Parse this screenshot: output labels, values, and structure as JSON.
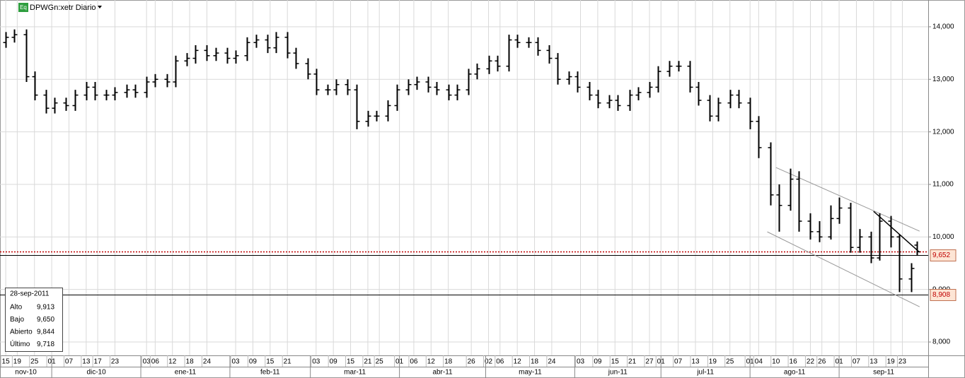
{
  "chart_data": {
    "type": "ohlc",
    "title": "DPWGn:xetr Diario",
    "badge": "Eq",
    "x": [
      "2010-11-15",
      "2010-11-18",
      "2010-11-22",
      "2010-11-25",
      "2010-11-29",
      "2010-12-02",
      "2010-12-06",
      "2010-12-09",
      "2010-12-13",
      "2010-12-16",
      "2010-12-20",
      "2010-12-23",
      "2010-12-27",
      "2010-12-30",
      "2011-01-03",
      "2011-01-06",
      "2011-01-10",
      "2011-01-13",
      "2011-01-17",
      "2011-01-20",
      "2011-01-24",
      "2011-01-27",
      "2011-01-31",
      "2011-02-03",
      "2011-02-07",
      "2011-02-10",
      "2011-02-14",
      "2011-02-17",
      "2011-02-21",
      "2011-02-24",
      "2011-02-28",
      "2011-03-03",
      "2011-03-07",
      "2011-03-10",
      "2011-03-14",
      "2011-03-17",
      "2011-03-21",
      "2011-03-24",
      "2011-03-28",
      "2011-03-31",
      "2011-04-04",
      "2011-04-07",
      "2011-04-11",
      "2011-04-14",
      "2011-04-18",
      "2011-04-21",
      "2011-04-25",
      "2011-04-28",
      "2011-05-02",
      "2011-05-05",
      "2011-05-09",
      "2011-05-12",
      "2011-05-16",
      "2011-05-19",
      "2011-05-23",
      "2011-05-26",
      "2011-05-30",
      "2011-06-02",
      "2011-06-06",
      "2011-06-09",
      "2011-06-13",
      "2011-06-16",
      "2011-06-20",
      "2011-06-23",
      "2011-06-27",
      "2011-06-30",
      "2011-07-04",
      "2011-07-07",
      "2011-07-11",
      "2011-07-14",
      "2011-07-18",
      "2011-07-21",
      "2011-07-25",
      "2011-07-28",
      "2011-08-01",
      "2011-08-04",
      "2011-08-08",
      "2011-08-11",
      "2011-08-15",
      "2011-08-18",
      "2011-08-22",
      "2011-08-25",
      "2011-08-29",
      "2011-09-01",
      "2011-09-05",
      "2011-09-08",
      "2011-09-12",
      "2011-09-15",
      "2011-09-19",
      "2011-09-22",
      "2011-09-26",
      "2011-09-28"
    ],
    "open": [
      13700,
      13800,
      13850,
      13050,
      12700,
      12450,
      12550,
      12500,
      12700,
      12850,
      12700,
      12700,
      12750,
      12800,
      12750,
      12950,
      13000,
      12950,
      13350,
      13400,
      13550,
      13450,
      13500,
      13400,
      13450,
      13700,
      13750,
      13600,
      13800,
      13500,
      13300,
      13100,
      12800,
      12800,
      12900,
      12800,
      12200,
      12300,
      12300,
      12500,
      12800,
      12900,
      12950,
      12850,
      12800,
      12700,
      12800,
      13100,
      13200,
      13350,
      13250,
      13750,
      13700,
      13700,
      13550,
      13400,
      13000,
      13050,
      12850,
      12700,
      12550,
      12600,
      12500,
      12700,
      12750,
      12850,
      13150,
      13250,
      13250,
      12850,
      12600,
      12300,
      12550,
      12700,
      12550,
      12200,
      11700,
      10800,
      10600,
      11100,
      10300,
      10100,
      10000,
      10350,
      10550,
      9800,
      10000,
      9600,
      10300,
      10000,
      9200,
      9844
    ],
    "high": [
      13900,
      13950,
      13950,
      13150,
      12800,
      12650,
      12650,
      12800,
      12950,
      12950,
      12800,
      12850,
      12900,
      12900,
      13050,
      13100,
      13100,
      13450,
      13500,
      13650,
      13650,
      13600,
      13600,
      13550,
      13800,
      13850,
      13850,
      13900,
      13900,
      13600,
      13400,
      13200,
      12900,
      13000,
      13000,
      12900,
      12400,
      12400,
      12600,
      12900,
      13000,
      13050,
      13050,
      12950,
      12900,
      12900,
      13200,
      13300,
      13450,
      13450,
      13850,
      13850,
      13800,
      13800,
      13650,
      13500,
      13150,
      13150,
      12950,
      12800,
      12700,
      12700,
      12800,
      12850,
      12950,
      13250,
      13350,
      13350,
      13350,
      12950,
      12700,
      12650,
      12800,
      12800,
      12650,
      12300,
      11800,
      11000,
      11300,
      11250,
      10450,
      10300,
      10600,
      10750,
      10650,
      10150,
      10100,
      10450,
      10400,
      10050,
      9500,
      9913
    ],
    "low": [
      13600,
      13700,
      12950,
      12600,
      12350,
      12350,
      12400,
      12400,
      12600,
      12600,
      12600,
      12600,
      12650,
      12650,
      12650,
      12850,
      12850,
      12850,
      13250,
      13300,
      13350,
      13350,
      13300,
      13300,
      13350,
      13600,
      13500,
      13500,
      13400,
      13200,
      13000,
      12700,
      12700,
      12700,
      12700,
      12050,
      12100,
      12200,
      12200,
      12400,
      12700,
      12800,
      12750,
      12700,
      12600,
      12600,
      12700,
      13000,
      13100,
      13150,
      13150,
      13600,
      13600,
      13450,
      13300,
      12900,
      12900,
      12750,
      12600,
      12450,
      12450,
      12400,
      12400,
      12600,
      12650,
      12750,
      13050,
      13150,
      12750,
      12500,
      12200,
      12200,
      12450,
      12450,
      12050,
      11500,
      10600,
      10100,
      10500,
      10100,
      9950,
      9900,
      9950,
      10250,
      9700,
      9700,
      9500,
      9550,
      9800,
      8950,
      8950,
      9650
    ],
    "close": [
      13800,
      13850,
      13050,
      12700,
      12450,
      12550,
      12500,
      12700,
      12850,
      12700,
      12700,
      12750,
      12800,
      12750,
      12950,
      13000,
      12950,
      13350,
      13400,
      13550,
      13450,
      13500,
      13400,
      13450,
      13700,
      13750,
      13600,
      13800,
      13500,
      13300,
      13100,
      12800,
      12800,
      12900,
      12800,
      12200,
      12300,
      12300,
      12500,
      12800,
      12900,
      12950,
      12850,
      12800,
      12700,
      12800,
      13100,
      13200,
      13350,
      13250,
      13750,
      13700,
      13700,
      13550,
      13400,
      13000,
      13050,
      12850,
      12700,
      12550,
      12600,
      12500,
      12700,
      12750,
      12850,
      13150,
      13250,
      13250,
      12850,
      12600,
      12300,
      12550,
      12700,
      12550,
      12200,
      11700,
      10800,
      10600,
      11100,
      10300,
      10100,
      10000,
      10350,
      10550,
      9800,
      10000,
      9600,
      10300,
      10000,
      9200,
      9400,
      9718
    ],
    "color": "#000000",
    "xlim": [
      "2010-11-13",
      "2011-10-02"
    ],
    "xticks": [
      {
        "value": "2010-11-15",
        "label": "15"
      },
      {
        "value": "2010-11-19",
        "label": "19"
      },
      {
        "value": "2010-11-25",
        "label": "25"
      },
      {
        "value": "2010-12-01",
        "label": "01"
      },
      {
        "value": "2010-12-07",
        "label": "07"
      },
      {
        "value": "2010-12-13",
        "label": "13"
      },
      {
        "value": "2010-12-17",
        "label": "17"
      },
      {
        "value": "2010-12-23",
        "label": "23"
      },
      {
        "value": "2011-01-03",
        "label": "03"
      },
      {
        "value": "2011-01-06",
        "label": "06"
      },
      {
        "value": "2011-01-12",
        "label": "12"
      },
      {
        "value": "2011-01-18",
        "label": "18"
      },
      {
        "value": "2011-01-24",
        "label": "24"
      },
      {
        "value": "2011-02-03",
        "label": "03"
      },
      {
        "value": "2011-02-09",
        "label": "09"
      },
      {
        "value": "2011-02-15",
        "label": "15"
      },
      {
        "value": "2011-02-21",
        "label": "21"
      },
      {
        "value": "2011-03-03",
        "label": "03"
      },
      {
        "value": "2011-03-09",
        "label": "09"
      },
      {
        "value": "2011-03-15",
        "label": "15"
      },
      {
        "value": "2011-03-21",
        "label": "21"
      },
      {
        "value": "2011-03-25",
        "label": "25"
      },
      {
        "value": "2011-04-01",
        "label": "01"
      },
      {
        "value": "2011-04-06",
        "label": "06"
      },
      {
        "value": "2011-04-12",
        "label": "12"
      },
      {
        "value": "2011-04-18",
        "label": "18"
      },
      {
        "value": "2011-04-26",
        "label": "26"
      },
      {
        "value": "2011-05-02",
        "label": "02"
      },
      {
        "value": "2011-05-06",
        "label": "06"
      },
      {
        "value": "2011-05-12",
        "label": "12"
      },
      {
        "value": "2011-05-18",
        "label": "18"
      },
      {
        "value": "2011-05-24",
        "label": "24"
      },
      {
        "value": "2011-06-03",
        "label": "03"
      },
      {
        "value": "2011-06-09",
        "label": "09"
      },
      {
        "value": "2011-06-15",
        "label": "15"
      },
      {
        "value": "2011-06-21",
        "label": "21"
      },
      {
        "value": "2011-06-27",
        "label": "27"
      },
      {
        "value": "2011-07-01",
        "label": "01"
      },
      {
        "value": "2011-07-07",
        "label": "07"
      },
      {
        "value": "2011-07-13",
        "label": "13"
      },
      {
        "value": "2011-07-19",
        "label": "19"
      },
      {
        "value": "2011-07-25",
        "label": "25"
      },
      {
        "value": "2011-08-01",
        "label": "01"
      },
      {
        "value": "2011-08-04",
        "label": "04"
      },
      {
        "value": "2011-08-10",
        "label": "10"
      },
      {
        "value": "2011-08-16",
        "label": "16"
      },
      {
        "value": "2011-08-22",
        "label": "22"
      },
      {
        "value": "2011-08-26",
        "label": "26"
      },
      {
        "value": "2011-09-01",
        "label": "01"
      },
      {
        "value": "2011-09-07",
        "label": "07"
      },
      {
        "value": "2011-09-13",
        "label": "13"
      },
      {
        "value": "2011-09-19",
        "label": "19"
      },
      {
        "value": "2011-09-23",
        "label": "23"
      }
    ],
    "month_ticks": [
      {
        "value": "2010-11",
        "label": "nov-10"
      },
      {
        "value": "2010-12",
        "label": "dic-10"
      },
      {
        "value": "2011-01",
        "label": "ene-11"
      },
      {
        "value": "2011-02",
        "label": "feb-11"
      },
      {
        "value": "2011-03",
        "label": "mar-11"
      },
      {
        "value": "2011-04",
        "label": "abr-11"
      },
      {
        "value": "2011-05",
        "label": "may-11"
      },
      {
        "value": "2011-06",
        "label": "jun-11"
      },
      {
        "value": "2011-07",
        "label": "jul-11"
      },
      {
        "value": "2011-08",
        "label": "ago-11"
      },
      {
        "value": "2011-09",
        "label": "sep-11"
      }
    ],
    "ylim": [
      7745,
      14510
    ],
    "yticks": [
      {
        "value": 8000,
        "label": "8,000"
      },
      {
        "value": 9000,
        "label": "9,000"
      },
      {
        "value": 10000,
        "label": "10,000"
      },
      {
        "value": 11000,
        "label": "11,000"
      },
      {
        "value": 12000,
        "label": "12,000"
      },
      {
        "value": 13000,
        "label": "13,000"
      },
      {
        "value": 14000,
        "label": "14,000"
      }
    ],
    "grid": true,
    "price_lines": [
      {
        "value": 9718,
        "color": "#c00000",
        "style": "dotted"
      },
      {
        "value": 9652,
        "label": "9,652",
        "color": "#000000",
        "style": "solid"
      },
      {
        "value": 8908,
        "label": "8,908",
        "color": "#000000",
        "style": "solid"
      }
    ],
    "trendlines": [
      {
        "x": [
          "2011-08-10",
          "2011-09-29"
        ],
        "y": [
          11322,
          10110
        ],
        "color": "#999999"
      },
      {
        "x": [
          "2011-08-07",
          "2011-09-29"
        ],
        "y": [
          10097,
          8670
        ],
        "color": "#999999"
      },
      {
        "x": [
          "2011-09-13",
          "2011-09-29"
        ],
        "y": [
          10487,
          9707
        ],
        "color": "#000000"
      }
    ],
    "info": {
      "date": "28-sep-2011",
      "rows": [
        [
          "Alto",
          "9,913"
        ],
        [
          "Bajo",
          "9,650"
        ],
        [
          "Abierto",
          "9,844"
        ],
        [
          "Último",
          "9,718"
        ]
      ]
    }
  }
}
